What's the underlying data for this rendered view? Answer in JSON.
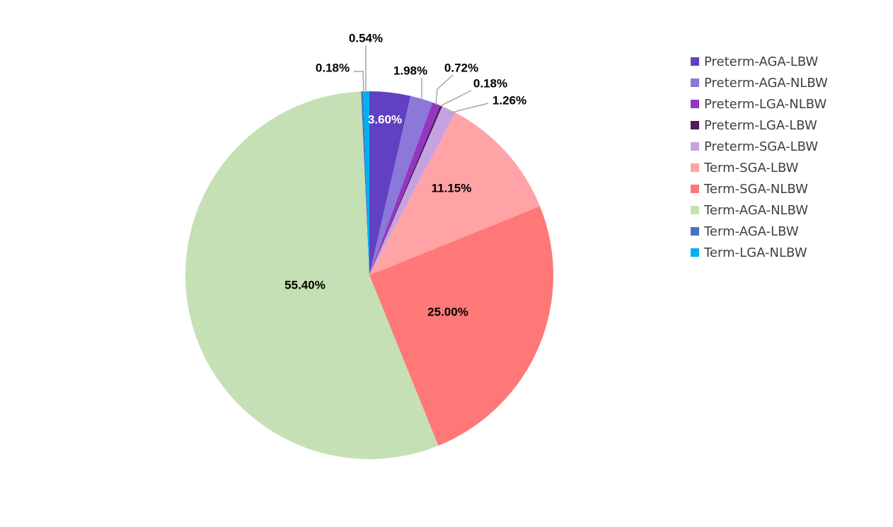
{
  "chart_data": {
    "type": "pie",
    "title": "",
    "start_angle_deg": -90,
    "direction": "clockwise",
    "legend_position": "right",
    "slices": [
      {
        "name": "Preterm-AGA-LBW",
        "value": 3.6,
        "label": "3.60%",
        "color": "#6140C4"
      },
      {
        "name": "Preterm-AGA-NLBW",
        "value": 1.98,
        "label": "1.98%",
        "color": "#8C78D8"
      },
      {
        "name": "Preterm-LGA-NLBW",
        "value": 0.72,
        "label": "0.72%",
        "color": "#9535C4"
      },
      {
        "name": "Preterm-LGA-LBW",
        "value": 0.18,
        "label": "0.18%",
        "color": "#4A1C5C"
      },
      {
        "name": "Preterm-SGA-LBW",
        "value": 1.26,
        "label": "1.26%",
        "color": "#C7A2E0"
      },
      {
        "name": "Term-SGA-LBW",
        "value": 11.15,
        "label": "11.15%",
        "color": "#FFA3A6"
      },
      {
        "name": "Term-SGA-NLBW",
        "value": 25.0,
        "label": "25.00%",
        "color": "#FF7878"
      },
      {
        "name": "Term-AGA-NLBW",
        "value": 55.4,
        "label": "55.40%",
        "color": "#C5E0B4"
      },
      {
        "name": "Term-AGA-LBW",
        "value": 0.18,
        "label": "0.18%",
        "color": "#4472C4"
      },
      {
        "name": "Term-LGA-NLBW",
        "value": 0.54,
        "label": "0.54%",
        "color": "#00B0F0"
      }
    ]
  },
  "legend": {
    "items": [
      {
        "label": "Preterm-AGA-LBW",
        "color": "#6140C4"
      },
      {
        "label": "Preterm-AGA-NLBW",
        "color": "#8C78D8"
      },
      {
        "label": "Preterm-LGA-NLBW",
        "color": "#9535C4"
      },
      {
        "label": "Preterm-LGA-LBW",
        "color": "#4A1C5C"
      },
      {
        "label": "Preterm-SGA-LBW",
        "color": "#C7A2E0"
      },
      {
        "label": "Term-SGA-LBW",
        "color": "#FFA3A6"
      },
      {
        "label": "Term-SGA-NLBW",
        "color": "#FF7878"
      },
      {
        "label": "Term-AGA-NLBW",
        "color": "#C5E0B4"
      },
      {
        "label": "Term-AGA-LBW",
        "color": "#4472C4"
      },
      {
        "label": "Term-LGA-NLBW",
        "color": "#00B0F0"
      }
    ]
  }
}
